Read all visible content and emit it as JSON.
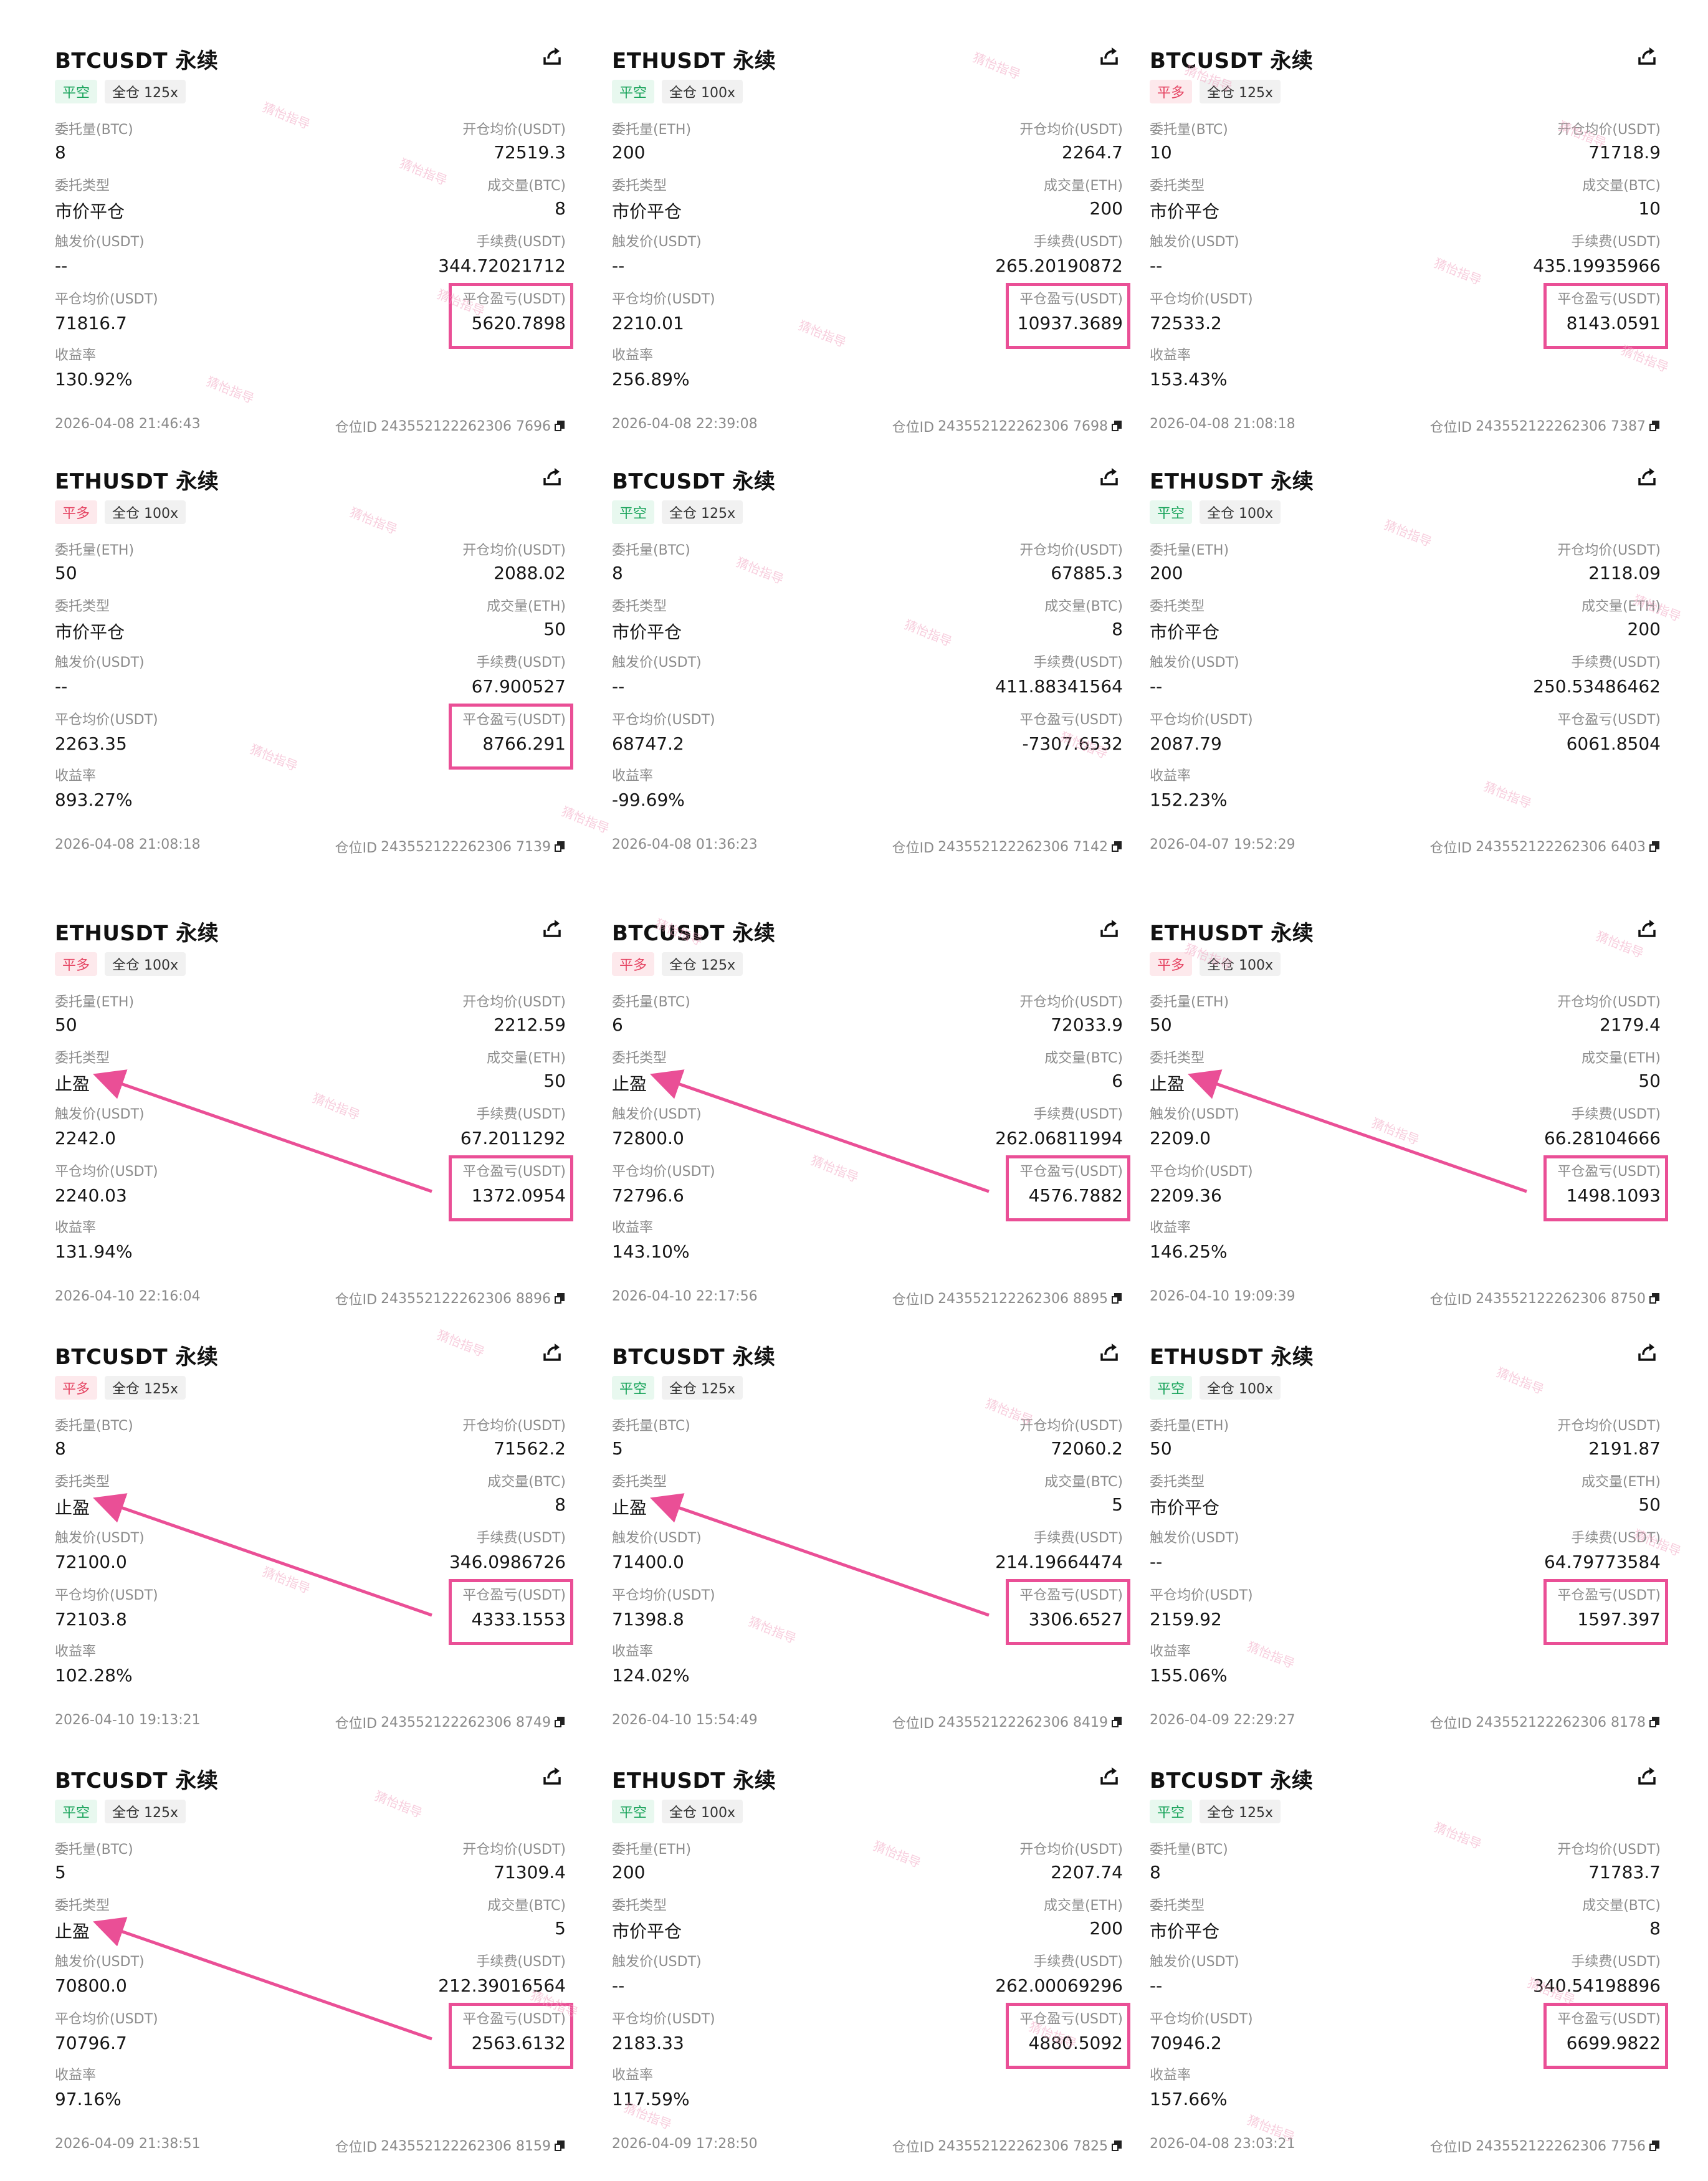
{
  "labels": {
    "order_qty": [
      "委托量(BTC)",
      "委托量(ETH)"
    ],
    "order_type": "委托类型",
    "trigger_price": "触发价(USDT)",
    "close_avg": "平仓均价(USDT)",
    "roi": "收益率",
    "open_avg": "开仓均价(USDT)",
    "filled_qty": [
      "成交量(BTC)",
      "成交量(ETH)"
    ],
    "fee": "手续费(USDT)",
    "pnl": "平仓盈亏(USDT)",
    "position_id": "仓位ID"
  },
  "watermark_text": "猜怡指导",
  "cards": [
    {
      "symbol": "BTCUSDT 永续",
      "side": "平空",
      "side_type": "short",
      "leverage": "全仓 125x",
      "qty_label": "委托量(BTC)",
      "qty": "8",
      "order_type": "市价平仓",
      "trigger": "--",
      "close_avg": "71816.7",
      "roi": "130.92%",
      "open_avg_label": "开仓均价(USDT)",
      "open_avg": "72519.3",
      "filled_label": "成交量(BTC)",
      "filled": "8",
      "fee": "344.72021712",
      "pnl": "5620.7898",
      "time": "2026-04-08 21:46:43",
      "pos_id": "243552122262306 7696",
      "highlight": true,
      "arrow": false
    },
    {
      "symbol": "ETHUSDT 永续",
      "side": "平空",
      "side_type": "short",
      "leverage": "全仓 100x",
      "qty_label": "委托量(ETH)",
      "qty": "200",
      "order_type": "市价平仓",
      "trigger": "--",
      "close_avg": "2210.01",
      "roi": "256.89%",
      "open_avg_label": "开仓均价(USDT)",
      "open_avg": "2264.7",
      "filled_label": "成交量(ETH)",
      "filled": "200",
      "fee": "265.20190872",
      "pnl": "10937.3689",
      "time": "2026-04-08 22:39:08",
      "pos_id": "243552122262306 7698",
      "highlight": true,
      "arrow": false
    },
    {
      "symbol": "BTCUSDT 永续",
      "side": "平多",
      "side_type": "long",
      "leverage": "全仓 125x",
      "qty_label": "委托量(BTC)",
      "qty": "10",
      "order_type": "市价平仓",
      "trigger": "--",
      "close_avg": "72533.2",
      "roi": "153.43%",
      "open_avg_label": "开仓均价(USDT)",
      "open_avg": "71718.9",
      "filled_label": "成交量(BTC)",
      "filled": "10",
      "fee": "435.19935966",
      "pnl": "8143.0591",
      "time": "2026-04-08 21:08:18",
      "pos_id": "243552122262306 7387",
      "highlight": true,
      "arrow": false
    },
    {
      "symbol": "ETHUSDT 永续",
      "side": "平多",
      "side_type": "long",
      "leverage": "全仓 100x",
      "qty_label": "委托量(ETH)",
      "qty": "50",
      "order_type": "市价平仓",
      "trigger": "--",
      "close_avg": "2263.35",
      "roi": "893.27%",
      "open_avg_label": "开仓均价(USDT)",
      "open_avg": "2088.02",
      "filled_label": "成交量(ETH)",
      "filled": "50",
      "fee": "67.900527",
      "pnl": "8766.291",
      "time": "2026-04-08 21:08:18",
      "pos_id": "243552122262306 7139",
      "highlight": true,
      "arrow": false
    },
    {
      "symbol": "BTCUSDT 永续",
      "side": "平空",
      "side_type": "short",
      "leverage": "全仓 125x",
      "qty_label": "委托量(BTC)",
      "qty": "8",
      "order_type": "市价平仓",
      "trigger": "--",
      "close_avg": "68747.2",
      "roi": "-99.69%",
      "open_avg_label": "开仓均价(USDT)",
      "open_avg": "67885.3",
      "filled_label": "成交量(BTC)",
      "filled": "8",
      "fee": "411.88341564",
      "pnl": "-7307.6532",
      "time": "2026-04-08 01:36:23",
      "pos_id": "243552122262306 7142",
      "highlight": false,
      "arrow": false
    },
    {
      "symbol": "ETHUSDT 永续",
      "side": "平空",
      "side_type": "short",
      "leverage": "全仓 100x",
      "qty_label": "委托量(ETH)",
      "qty": "200",
      "order_type": "市价平仓",
      "trigger": "--",
      "close_avg": "2087.79",
      "roi": "152.23%",
      "open_avg_label": "开仓均价(USDT)",
      "open_avg": "2118.09",
      "filled_label": "成交量(ETH)",
      "filled": "200",
      "fee": "250.53486462",
      "pnl": "6061.8504",
      "time": "2026-04-07 19:52:29",
      "pos_id": "243552122262306 6403",
      "highlight": false,
      "arrow": false
    },
    {
      "symbol": "ETHUSDT 永续",
      "side": "平多",
      "side_type": "long",
      "leverage": "全仓 100x",
      "qty_label": "委托量(ETH)",
      "qty": "50",
      "order_type": "止盈",
      "trigger": "2242.0",
      "close_avg": "2240.03",
      "roi": "131.94%",
      "open_avg_label": "开仓均价(USDT)",
      "open_avg": "2212.59",
      "filled_label": "成交量(ETH)",
      "filled": "50",
      "fee": "67.2011292",
      "pnl": "1372.0954",
      "time": "2026-04-10 22:16:04",
      "pos_id": "243552122262306 8896",
      "highlight": true,
      "arrow": true
    },
    {
      "symbol": "BTCUSDT 永续",
      "side": "平多",
      "side_type": "long",
      "leverage": "全仓 125x",
      "qty_label": "委托量(BTC)",
      "qty": "6",
      "order_type": "止盈",
      "trigger": "72800.0",
      "close_avg": "72796.6",
      "roi": "143.10%",
      "open_avg_label": "开仓均价(USDT)",
      "open_avg": "72033.9",
      "filled_label": "成交量(BTC)",
      "filled": "6",
      "fee": "262.06811994",
      "pnl": "4576.7882",
      "time": "2026-04-10 22:17:56",
      "pos_id": "243552122262306 8895",
      "highlight": true,
      "arrow": true
    },
    {
      "symbol": "ETHUSDT 永续",
      "side": "平多",
      "side_type": "long",
      "leverage": "全仓 100x",
      "qty_label": "委托量(ETH)",
      "qty": "50",
      "order_type": "止盈",
      "trigger": "2209.0",
      "close_avg": "2209.36",
      "roi": "146.25%",
      "open_avg_label": "开仓均价(USDT)",
      "open_avg": "2179.4",
      "filled_label": "成交量(ETH)",
      "filled": "50",
      "fee": "66.28104666",
      "pnl": "1498.1093",
      "time": "2026-04-10 19:09:39",
      "pos_id": "243552122262306 8750",
      "highlight": true,
      "arrow": true
    },
    {
      "symbol": "BTCUSDT 永续",
      "side": "平多",
      "side_type": "long",
      "leverage": "全仓 125x",
      "qty_label": "委托量(BTC)",
      "qty": "8",
      "order_type": "止盈",
      "trigger": "72100.0",
      "close_avg": "72103.8",
      "roi": "102.28%",
      "open_avg_label": "开仓均价(USDT)",
      "open_avg": "71562.2",
      "filled_label": "成交量(BTC)",
      "filled": "8",
      "fee": "346.0986726",
      "pnl": "4333.1553",
      "time": "2026-04-10 19:13:21",
      "pos_id": "243552122262306 8749",
      "highlight": true,
      "arrow": true
    },
    {
      "symbol": "BTCUSDT 永续",
      "side": "平空",
      "side_type": "short",
      "leverage": "全仓 125x",
      "qty_label": "委托量(BTC)",
      "qty": "5",
      "order_type": "止盈",
      "trigger": "71400.0",
      "close_avg": "71398.8",
      "roi": "124.02%",
      "open_avg_label": "开仓均价(USDT)",
      "open_avg": "72060.2",
      "filled_label": "成交量(BTC)",
      "filled": "5",
      "fee": "214.19664474",
      "pnl": "3306.6527",
      "time": "2026-04-10 15:54:49",
      "pos_id": "243552122262306 8419",
      "highlight": true,
      "arrow": true
    },
    {
      "symbol": "ETHUSDT 永续",
      "side": "平空",
      "side_type": "short",
      "leverage": "全仓 100x",
      "qty_label": "委托量(ETH)",
      "qty": "50",
      "order_type": "市价平仓",
      "trigger": "--",
      "close_avg": "2159.92",
      "roi": "155.06%",
      "open_avg_label": "开仓均价(USDT)",
      "open_avg": "2191.87",
      "filled_label": "成交量(ETH)",
      "filled": "50",
      "fee": "64.79773584",
      "pnl": "1597.397",
      "time": "2026-04-09 22:29:27",
      "pos_id": "243552122262306 8178",
      "highlight": true,
      "arrow": false
    },
    {
      "symbol": "BTCUSDT 永续",
      "side": "平空",
      "side_type": "short",
      "leverage": "全仓 125x",
      "qty_label": "委托量(BTC)",
      "qty": "5",
      "order_type": "止盈",
      "trigger": "70800.0",
      "close_avg": "70796.7",
      "roi": "97.16%",
      "open_avg_label": "开仓均价(USDT)",
      "open_avg": "71309.4",
      "filled_label": "成交量(BTC)",
      "filled": "5",
      "fee": "212.39016564",
      "pnl": "2563.6132",
      "time": "2026-04-09 21:38:51",
      "pos_id": "243552122262306 8159",
      "highlight": true,
      "arrow": true
    },
    {
      "symbol": "ETHUSDT 永续",
      "side": "平空",
      "side_type": "short",
      "leverage": "全仓 100x",
      "qty_label": "委托量(ETH)",
      "qty": "200",
      "order_type": "市价平仓",
      "trigger": "--",
      "close_avg": "2183.33",
      "roi": "117.59%",
      "open_avg_label": "开仓均价(USDT)",
      "open_avg": "2207.74",
      "filled_label": "成交量(ETH)",
      "filled": "200",
      "fee": "262.00069296",
      "pnl": "4880.5092",
      "time": "2026-04-09 17:28:50",
      "pos_id": "243552122262306 7825",
      "highlight": true,
      "arrow": false
    },
    {
      "symbol": "BTCUSDT 永续",
      "side": "平空",
      "side_type": "short",
      "leverage": "全仓 125x",
      "qty_label": "委托量(BTC)",
      "qty": "8",
      "order_type": "市价平仓",
      "trigger": "--",
      "close_avg": "70946.2",
      "roi": "157.66%",
      "open_avg_label": "开仓均价(USDT)",
      "open_avg": "71783.7",
      "filled_label": "成交量(BTC)",
      "filled": "8",
      "fee": "340.54198896",
      "pnl": "6699.9822",
      "time": "2026-04-08 23:03:21",
      "pos_id": "243552122262306 7756",
      "highlight": true,
      "arrow": false
    }
  ],
  "colors": {
    "accent_highlight": "#ea4f96",
    "short_tag": "#17a35a",
    "long_tag": "#e54563"
  },
  "icons": {
    "share": "share-icon",
    "copy": "copy-icon"
  }
}
